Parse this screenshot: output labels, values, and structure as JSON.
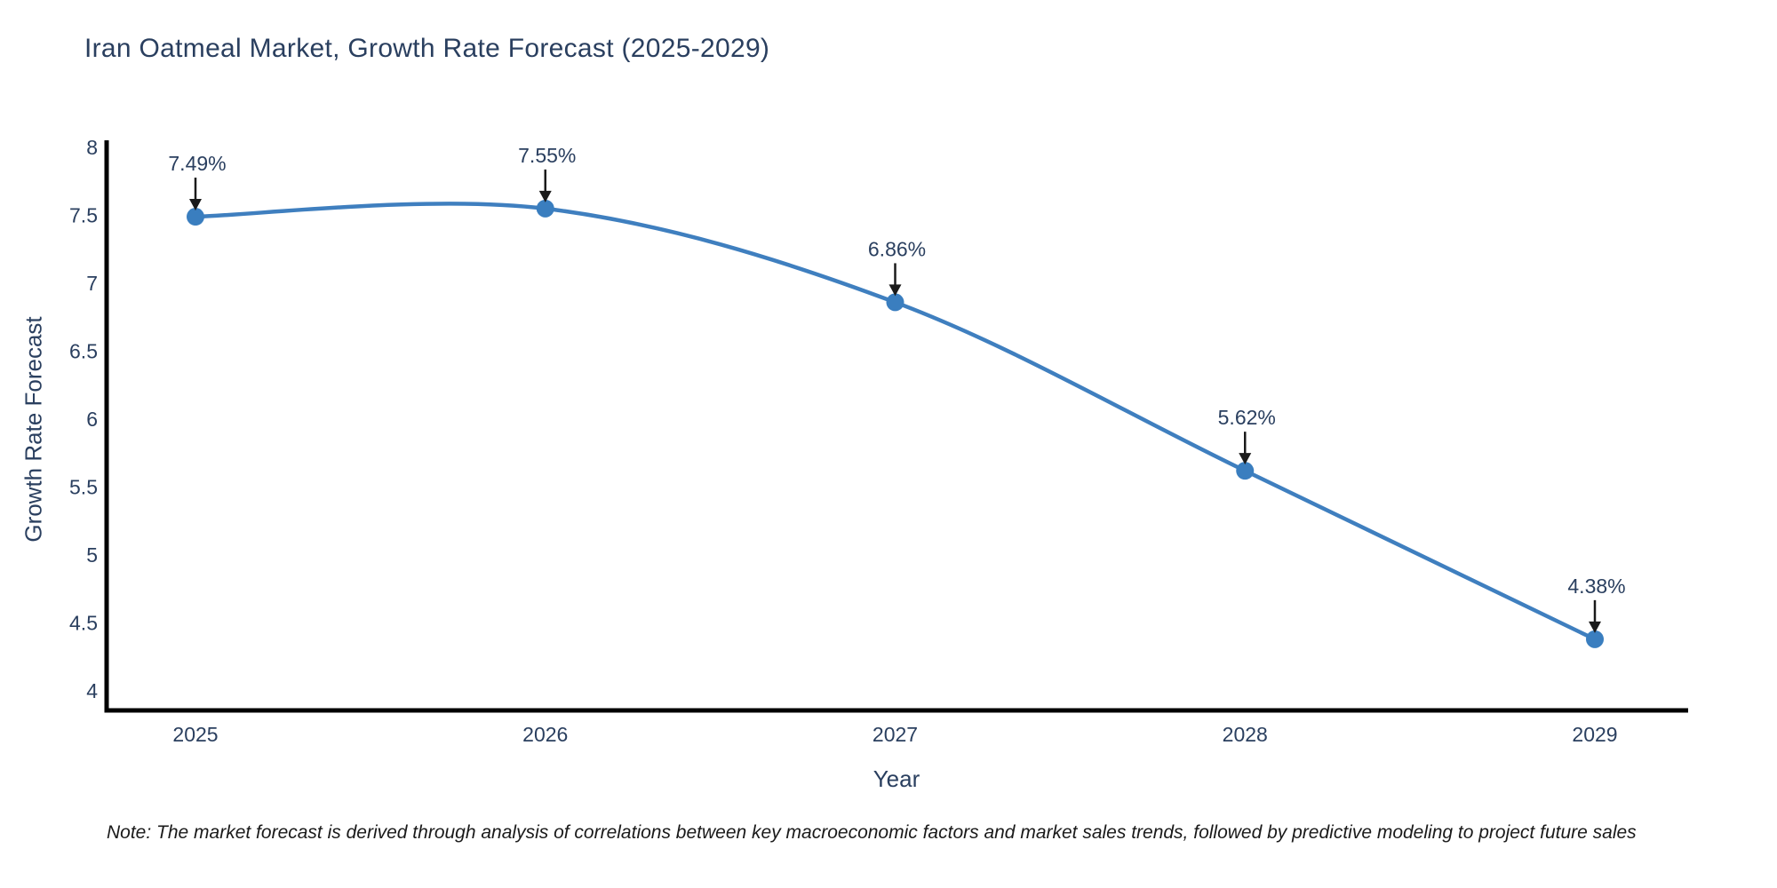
{
  "chart": {
    "note": "Note: The market forecast is derived through analysis of correlations between key macroeconomic factors and market sales trends, followed by predictive modeling to project future sales"
  },
  "chart_data": {
    "type": "line",
    "title": "Iran Oatmeal Market, Growth Rate Forecast (2025-2029)",
    "xlabel": "Year",
    "ylabel": "Growth Rate Forecast",
    "x": [
      2025,
      2026,
      2027,
      2028,
      2029
    ],
    "values": [
      7.49,
      7.55,
      6.86,
      5.62,
      4.38
    ],
    "point_labels": [
      "7.49%",
      "7.55%",
      "6.86%",
      "5.62%",
      "4.38%"
    ],
    "yticks": [
      4,
      4.5,
      5,
      5.5,
      6,
      6.5,
      7,
      7.5,
      8
    ],
    "ylim": [
      3.9,
      8.1
    ],
    "grid": false,
    "legend": "none",
    "line_shape": "spline",
    "line_color": "#3f7fbf",
    "marker_color": "#3a7ebf",
    "axis_color": "#000000",
    "text_color": "#2a3f5f",
    "arrow_color": "#1a1a1a"
  }
}
